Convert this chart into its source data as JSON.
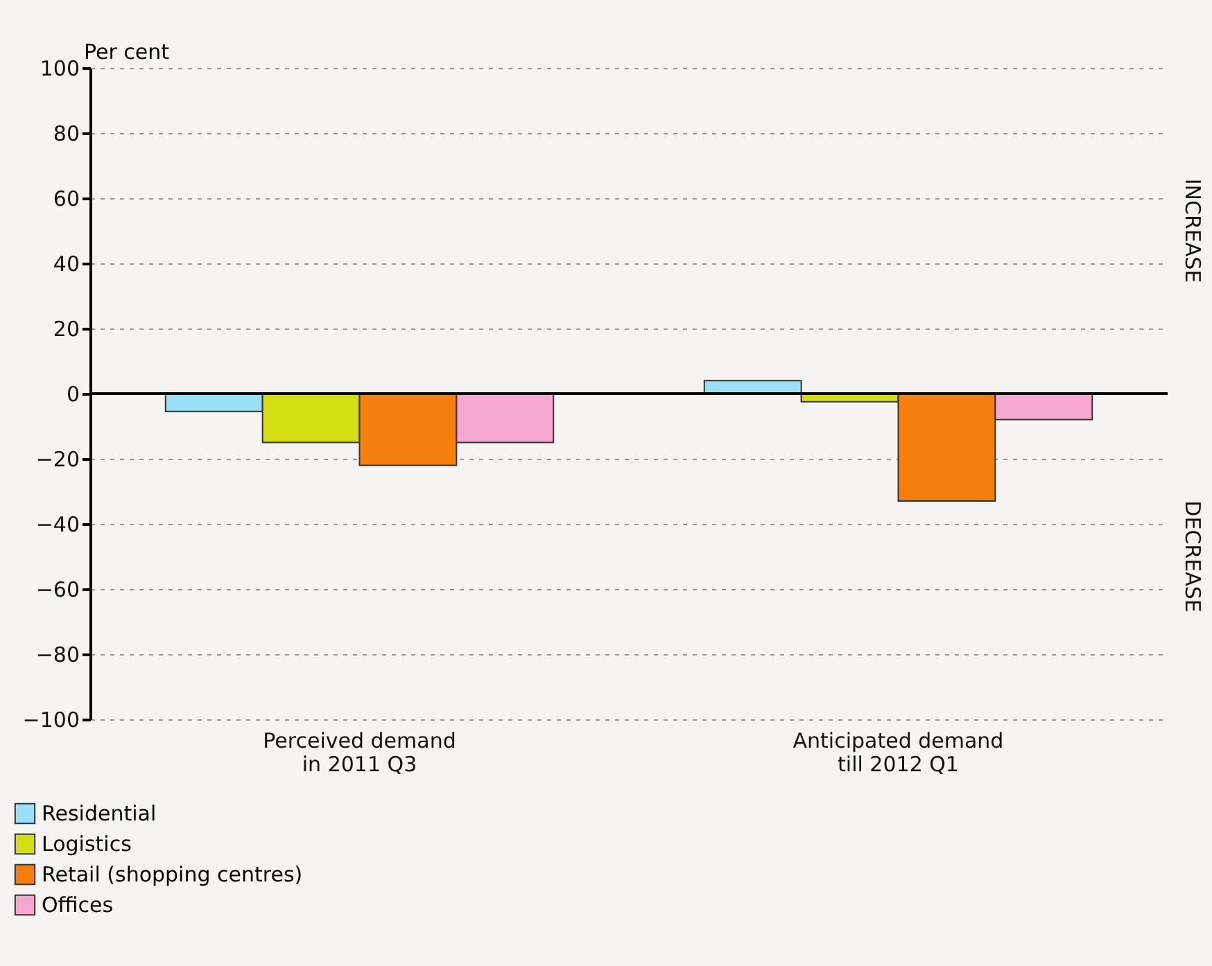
{
  "chart_data": {
    "type": "bar",
    "ylabel": "Per cent",
    "categories": [
      "Perceived demand\nin 2011 Q3",
      "Anticipated demand\ntill 2012 Q1"
    ],
    "series": [
      {
        "name": "Residential",
        "color": "#99e0f5",
        "values": [
          -5.5,
          4
        ]
      },
      {
        "name": "Logistics",
        "color": "#d4dc14",
        "values": [
          -15,
          -2.5
        ]
      },
      {
        "name": "Retail (shopping centres)",
        "color": "#f57f0c",
        "values": [
          -22,
          -33
        ]
      },
      {
        "name": "Offices",
        "color": "#f5a8cf",
        "values": [
          -15,
          -8
        ]
      }
    ],
    "ylim": [
      -100,
      100
    ],
    "yticks": [
      {
        "value": -100,
        "label": "−100"
      },
      {
        "value": -80,
        "label": "−80"
      },
      {
        "value": -60,
        "label": "−60"
      },
      {
        "value": -40,
        "label": "−40"
      },
      {
        "value": -20,
        "label": "−20"
      },
      0,
      20,
      40,
      60,
      80,
      100
    ],
    "grid": "y",
    "legend": "bottom left",
    "annotations": [
      "INCREASE",
      "DECREASE"
    ]
  }
}
